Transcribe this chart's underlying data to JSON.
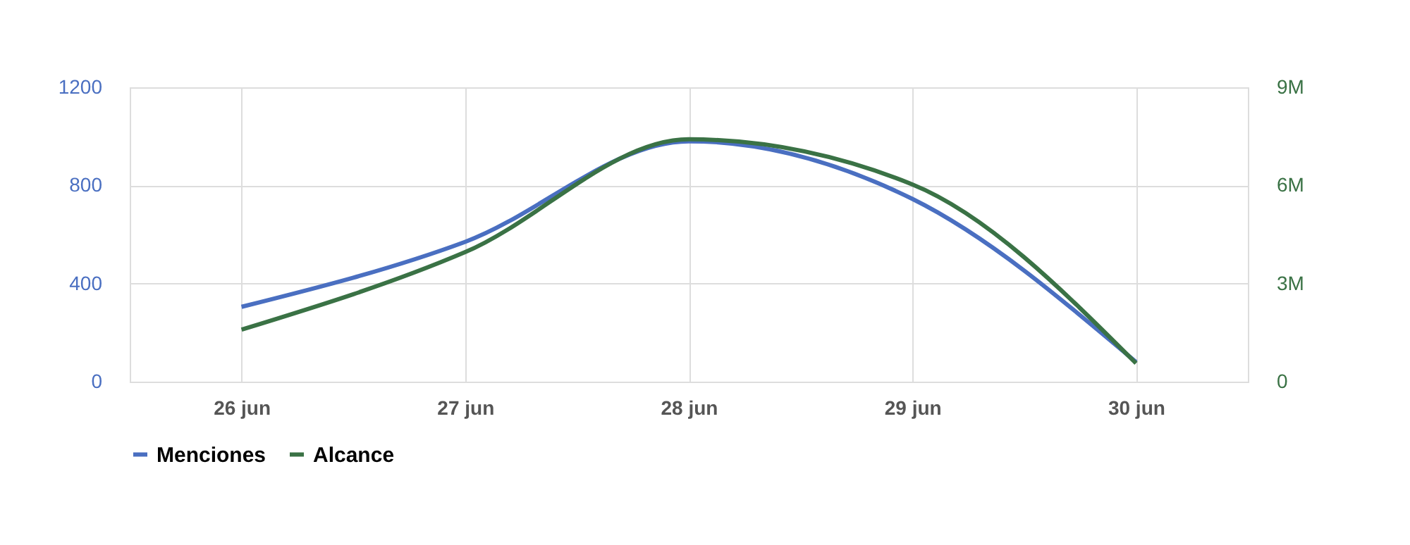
{
  "chart_data": {
    "type": "line",
    "categories": [
      "26 jun",
      "27 jun",
      "28 jun",
      "29 jun",
      "30 jun"
    ],
    "series": [
      {
        "name": "Menciones",
        "color": "#4a6fc1",
        "values": [
          305,
          570,
          980,
          745,
          80
        ]
      },
      {
        "name": "Alcance",
        "color": "#3a7245",
        "axis": "y2",
        "values": [
          1590000,
          3960000,
          7410000,
          6030000,
          560000
        ]
      }
    ],
    "ylim": [
      0,
      1200
    ],
    "yticks": [
      0,
      400,
      800,
      1200
    ],
    "y2lim": [
      0,
      9000000
    ],
    "y2ticks": [
      {
        "value": 0,
        "label": "0"
      },
      {
        "value": 3000000,
        "label": "3M"
      },
      {
        "value": 6000000,
        "label": "6M"
      },
      {
        "value": 9000000,
        "label": "9M"
      }
    ],
    "grid": true,
    "legend": "bottom left",
    "marker": "none",
    "line_style": "solid"
  }
}
